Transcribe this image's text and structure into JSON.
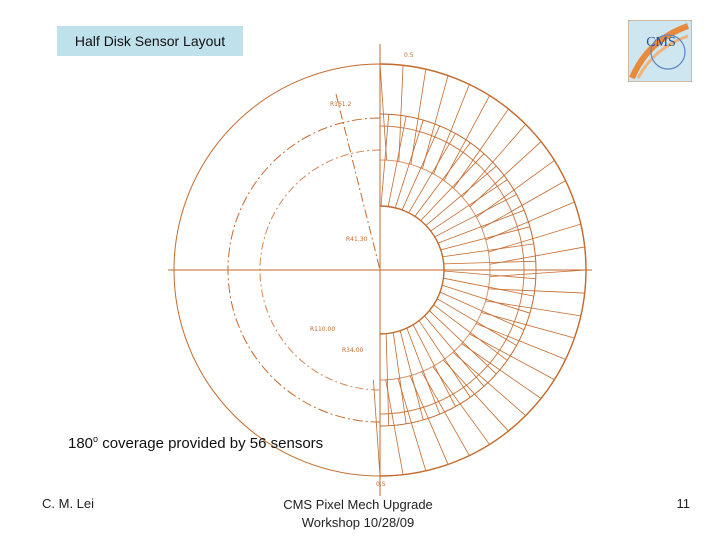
{
  "slide": {
    "title": "Half Disk Sensor Layout",
    "caption_prefix": "180",
    "caption_sup": "o",
    "caption_rest": " coverage provided by 56 sensors",
    "author": "C. M. Lei",
    "footer_line1": "CMS Pixel Mech Upgrade",
    "footer_line2": "Workshop 10/28/09",
    "page_number": "11"
  },
  "drawing": {
    "line_color": "#c46a2c",
    "sensor_count": 56,
    "dimension_labels": [
      "0.5",
      "R161.2",
      "R41.30",
      "R110.00",
      "R34.00",
      "0.5"
    ]
  },
  "logo": {
    "icon": "cms-logo-icon",
    "text": "CMS",
    "colors": {
      "background": "#cde6ef",
      "ring": "#e88a3a",
      "text": "#2a4d9a"
    }
  }
}
